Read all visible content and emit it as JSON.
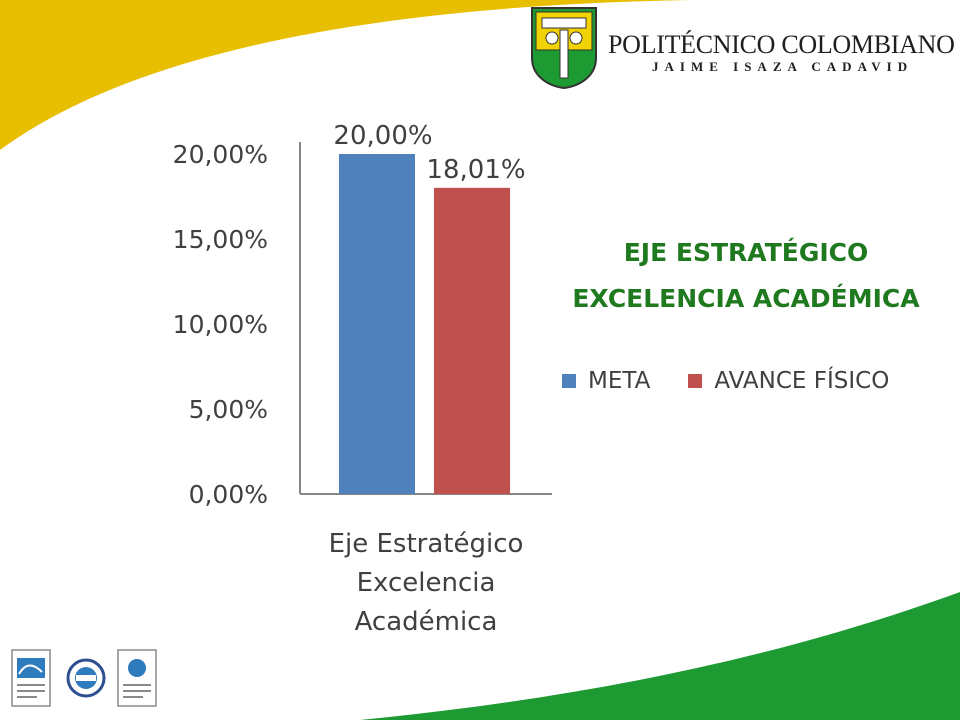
{
  "header": {
    "logo_name": "POLITÉCNICO COLOMBIANO",
    "logo_subtitle": "JAIME ISAZA CADAVID"
  },
  "theme": {
    "yellow": "#e8bf00",
    "green": "#1e9a32",
    "title_green": "#1f7a1f",
    "meta_blue": "#4f81bd",
    "avance_red": "#c0504d"
  },
  "side_title": {
    "line1": "EJE ESTRATÉGICO",
    "line2": "EXCELENCIA ACADÉMICA"
  },
  "chart_data": {
    "type": "bar",
    "categories": [
      "Eje Estratégico Excelencia Académica"
    ],
    "category_label_lines": [
      "Eje Estratégico",
      "Excelencia",
      "Académica"
    ],
    "series": [
      {
        "name": "META",
        "values": [
          20.0
        ],
        "label": "20,00%",
        "color": "#4f81bd"
      },
      {
        "name": "AVANCE FÍSICO",
        "values": [
          18.01
        ],
        "label": "18,01%",
        "color": "#c0504d"
      }
    ],
    "yticks": [
      {
        "value": 0,
        "label": "0,00%"
      },
      {
        "value": 5,
        "label": "5,00%"
      },
      {
        "value": 10,
        "label": "10,00%"
      },
      {
        "value": 15,
        "label": "15,00%"
      },
      {
        "value": 20,
        "label": "20,00%"
      }
    ],
    "ylim": [
      0,
      20
    ],
    "grid": false,
    "legend_position": "right"
  }
}
